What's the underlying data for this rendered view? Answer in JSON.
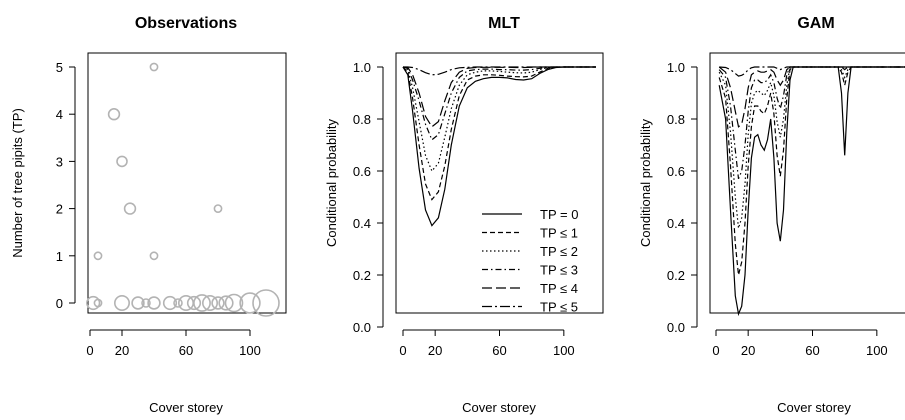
{
  "chart_data": [
    {
      "type": "scatter",
      "title": "Observations",
      "xlabel": "Cover storey",
      "ylabel": "Number of tree pipits (TP)",
      "xlim": [
        0,
        120
      ],
      "ylim": [
        0,
        5
      ],
      "xticks": [
        0,
        20,
        60,
        100
      ],
      "yticks": [
        0,
        1,
        2,
        3,
        4,
        5
      ],
      "marker_color": "#b3b3b3",
      "points": [
        {
          "x": 2,
          "y": 0,
          "size": 1.4
        },
        {
          "x": 5,
          "y": 0,
          "size": 0.8
        },
        {
          "x": 20,
          "y": 0,
          "size": 1.6
        },
        {
          "x": 30,
          "y": 0,
          "size": 1.3
        },
        {
          "x": 35,
          "y": 0,
          "size": 0.9
        },
        {
          "x": 40,
          "y": 0,
          "size": 1.3
        },
        {
          "x": 50,
          "y": 0,
          "size": 1.4
        },
        {
          "x": 55,
          "y": 0,
          "size": 0.9
        },
        {
          "x": 60,
          "y": 0,
          "size": 1.6
        },
        {
          "x": 65,
          "y": 0,
          "size": 1.4
        },
        {
          "x": 70,
          "y": 0,
          "size": 1.8
        },
        {
          "x": 75,
          "y": 0,
          "size": 1.6
        },
        {
          "x": 80,
          "y": 0,
          "size": 1.3
        },
        {
          "x": 85,
          "y": 0,
          "size": 1.5
        },
        {
          "x": 90,
          "y": 0,
          "size": 1.9
        },
        {
          "x": 100,
          "y": 0,
          "size": 2.2
        },
        {
          "x": 110,
          "y": 0,
          "size": 2.9
        },
        {
          "x": 5,
          "y": 1,
          "size": 0.8
        },
        {
          "x": 40,
          "y": 1,
          "size": 0.8
        },
        {
          "x": 25,
          "y": 2,
          "size": 1.2
        },
        {
          "x": 80,
          "y": 2,
          "size": 0.8
        },
        {
          "x": 20,
          "y": 3,
          "size": 1.1
        },
        {
          "x": 15,
          "y": 4,
          "size": 1.2
        },
        {
          "x": 40,
          "y": 5,
          "size": 0.8
        }
      ]
    },
    {
      "type": "line",
      "title": "MLT",
      "xlabel": "Cover storey",
      "ylabel": "Conditional probability",
      "xlim": [
        0,
        120
      ],
      "ylim": [
        0,
        1
      ],
      "xticks": [
        0,
        20,
        60,
        100
      ],
      "yticks": [
        0.0,
        0.2,
        0.4,
        0.6,
        0.8,
        1.0
      ],
      "legend": "bottom-right",
      "x": [
        0,
        3,
        6,
        10,
        14,
        18,
        22,
        26,
        30,
        35,
        40,
        45,
        50,
        55,
        60,
        65,
        70,
        75,
        80,
        85,
        90,
        95,
        100,
        110,
        120
      ],
      "series": [
        {
          "name": "TP = 0",
          "dash": "",
          "values": [
            1.0,
            0.97,
            0.83,
            0.61,
            0.45,
            0.39,
            0.42,
            0.53,
            0.7,
            0.85,
            0.92,
            0.945,
            0.955,
            0.96,
            0.96,
            0.958,
            0.952,
            0.95,
            0.955,
            0.975,
            0.99,
            0.998,
            1.0,
            1.0,
            1.0
          ]
        },
        {
          "name": "TP ≤ 1",
          "dash": "5,3",
          "values": [
            1.0,
            0.98,
            0.88,
            0.7,
            0.55,
            0.49,
            0.52,
            0.62,
            0.76,
            0.89,
            0.95,
            0.965,
            0.97,
            0.97,
            0.968,
            0.965,
            0.963,
            0.962,
            0.965,
            0.98,
            0.995,
            1.0,
            1.0,
            1.0,
            1.0
          ]
        },
        {
          "name": "TP ≤ 2",
          "dash": "1.5,2.5",
          "values": [
            1.0,
            0.99,
            0.92,
            0.79,
            0.66,
            0.6,
            0.63,
            0.73,
            0.84,
            0.93,
            0.97,
            0.98,
            0.985,
            0.985,
            0.983,
            0.98,
            0.978,
            0.977,
            0.98,
            0.99,
            0.998,
            1.0,
            1.0,
            1.0,
            1.0
          ]
        },
        {
          "name": "TP ≤ 3",
          "dash": "6,3,1.5,3",
          "values": [
            1.0,
            0.995,
            0.95,
            0.87,
            0.78,
            0.72,
            0.74,
            0.82,
            0.9,
            0.96,
            0.985,
            0.99,
            0.992,
            0.992,
            0.99,
            0.99,
            0.988,
            0.988,
            0.99,
            0.995,
            0.999,
            1.0,
            1.0,
            1.0,
            1.0
          ]
        },
        {
          "name": "TP ≤ 4",
          "dash": "10,4",
          "values": [
            1.0,
            0.998,
            0.97,
            0.9,
            0.81,
            0.77,
            0.79,
            0.87,
            0.94,
            0.98,
            0.995,
            0.998,
            0.999,
            0.999,
            0.999,
            0.999,
            0.998,
            0.998,
            0.999,
            1.0,
            1.0,
            1.0,
            1.0,
            1.0,
            1.0
          ]
        },
        {
          "name": "TP ≤ 5",
          "dash": "10,3,2,3",
          "values": [
            1.0,
            1.0,
            0.998,
            0.99,
            0.978,
            0.97,
            0.972,
            0.98,
            0.99,
            0.997,
            0.999,
            1.0,
            1.0,
            1.0,
            1.0,
            1.0,
            1.0,
            1.0,
            1.0,
            1.0,
            1.0,
            1.0,
            1.0,
            1.0,
            1.0
          ]
        }
      ]
    },
    {
      "type": "line",
      "title": "GAM",
      "xlabel": "Cover storey",
      "ylabel": "Conditional probability",
      "xlim": [
        0,
        120
      ],
      "ylim": [
        0,
        1
      ],
      "xticks": [
        0,
        20,
        60,
        100
      ],
      "yticks": [
        0.0,
        0.2,
        0.4,
        0.6,
        0.8,
        1.0
      ],
      "x": [
        2,
        6,
        9,
        12,
        14,
        16,
        18,
        20,
        22,
        24,
        26,
        28,
        30,
        32,
        34,
        36,
        38,
        40,
        42,
        44,
        46,
        48,
        50,
        55,
        60,
        70,
        76,
        78,
        80,
        82,
        84,
        90,
        100,
        120
      ],
      "series": [
        {
          "name": "TP = 0",
          "dash": "",
          "values": [
            0.93,
            0.8,
            0.45,
            0.12,
            0.05,
            0.08,
            0.2,
            0.45,
            0.65,
            0.73,
            0.74,
            0.7,
            0.68,
            0.72,
            0.8,
            0.65,
            0.4,
            0.33,
            0.45,
            0.75,
            0.95,
            1.0,
            1.0,
            1.0,
            1.0,
            1.0,
            1.0,
            0.9,
            0.66,
            0.9,
            1.0,
            1.0,
            1.0,
            1.0
          ]
        },
        {
          "name": "TP ≤ 1",
          "dash": "5,3",
          "values": [
            0.96,
            0.88,
            0.62,
            0.32,
            0.2,
            0.25,
            0.4,
            0.62,
            0.77,
            0.85,
            0.85,
            0.83,
            0.82,
            0.85,
            0.9,
            0.82,
            0.66,
            0.58,
            0.68,
            0.88,
            0.99,
            1.0,
            1.0,
            1.0,
            1.0,
            1.0,
            1.0,
            0.98,
            0.93,
            0.98,
            1.0,
            1.0,
            1.0,
            1.0
          ]
        },
        {
          "name": "TP ≤ 2",
          "dash": "1.5,2.5",
          "values": [
            0.98,
            0.93,
            0.75,
            0.5,
            0.38,
            0.42,
            0.55,
            0.74,
            0.86,
            0.9,
            0.91,
            0.9,
            0.89,
            0.91,
            0.94,
            0.89,
            0.79,
            0.73,
            0.8,
            0.93,
            1.0,
            1.0,
            1.0,
            1.0,
            1.0,
            1.0,
            1.0,
            0.99,
            0.96,
            0.99,
            1.0,
            1.0,
            1.0,
            1.0
          ]
        },
        {
          "name": "TP ≤ 3",
          "dash": "6,3,1.5,3",
          "values": [
            0.99,
            0.96,
            0.85,
            0.68,
            0.57,
            0.6,
            0.7,
            0.83,
            0.92,
            0.95,
            0.95,
            0.94,
            0.94,
            0.95,
            0.97,
            0.94,
            0.88,
            0.84,
            0.89,
            0.97,
            1.0,
            1.0,
            1.0,
            1.0,
            1.0,
            1.0,
            1.0,
            1.0,
            0.99,
            1.0,
            1.0,
            1.0,
            1.0,
            1.0
          ]
        },
        {
          "name": "TP ≤ 4",
          "dash": "10,4",
          "values": [
            1.0,
            0.98,
            0.92,
            0.83,
            0.77,
            0.78,
            0.84,
            0.92,
            0.97,
            0.98,
            0.985,
            0.98,
            0.98,
            0.985,
            0.99,
            0.98,
            0.95,
            0.93,
            0.95,
            0.99,
            1.0,
            1.0,
            1.0,
            1.0,
            1.0,
            1.0,
            1.0,
            1.0,
            1.0,
            1.0,
            1.0,
            1.0,
            1.0,
            1.0
          ]
        },
        {
          "name": "TP ≤ 5",
          "dash": "10,3,2,3",
          "values": [
            1.0,
            0.998,
            0.99,
            0.975,
            0.965,
            0.968,
            0.975,
            0.99,
            0.997,
            1.0,
            1.0,
            1.0,
            1.0,
            1.0,
            1.0,
            1.0,
            0.995,
            0.99,
            0.995,
            1.0,
            1.0,
            1.0,
            1.0,
            1.0,
            1.0,
            1.0,
            1.0,
            1.0,
            1.0,
            1.0,
            1.0,
            1.0,
            1.0,
            1.0
          ]
        }
      ]
    }
  ]
}
